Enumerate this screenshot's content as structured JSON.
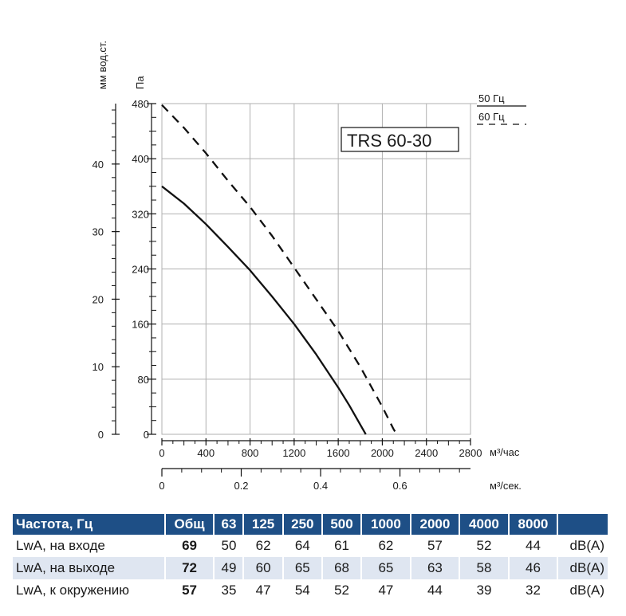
{
  "chart_data": {
    "type": "line",
    "model_label": "TRS 60-30",
    "y_left_label": "мм вод.ст.",
    "y_left_ticks": [
      "0",
      "10",
      "20",
      "30",
      "40"
    ],
    "y_right_label": "Па",
    "y_ticks": [
      "0",
      "80",
      "160",
      "240",
      "320",
      "400",
      "480"
    ],
    "ylim": [
      0,
      480
    ],
    "x_unit_label": "м³/час",
    "x_ticks": [
      "0",
      "400",
      "800",
      "1200",
      "1600",
      "2000",
      "2400",
      "2800"
    ],
    "xlim": [
      0,
      2800
    ],
    "x2_unit_label": "м³/сек.",
    "x2_ticks": [
      "0",
      "0.2",
      "0.4",
      "0.6"
    ],
    "legend": [
      {
        "label": "50 Гц",
        "style": "solid"
      },
      {
        "label": "60 Гц",
        "style": "dashed"
      }
    ],
    "series": [
      {
        "name": "50 Гц",
        "style": "solid",
        "x": [
          0,
          200,
          400,
          600,
          800,
          1000,
          1200,
          1400,
          1600,
          1700,
          1800,
          1850
        ],
        "y": [
          360,
          335,
          305,
          272,
          238,
          200,
          160,
          116,
          68,
          42,
          14,
          0
        ]
      },
      {
        "name": "60 Гц",
        "style": "dashed",
        "x": [
          0,
          200,
          400,
          600,
          800,
          1000,
          1200,
          1400,
          1600,
          1800,
          2000,
          2100,
          2130
        ],
        "y": [
          478,
          445,
          408,
          368,
          330,
          288,
          242,
          196,
          150,
          98,
          40,
          8,
          0
        ]
      }
    ],
    "grid": true
  },
  "sound_table": {
    "header": [
      "Частота, Гц",
      "Общ",
      "63",
      "125",
      "250",
      "500",
      "1000",
      "2000",
      "4000",
      "8000"
    ],
    "rows": [
      {
        "label": "LwA, на входе",
        "total": "69",
        "values": [
          "50",
          "62",
          "64",
          "61",
          "62",
          "57",
          "52",
          "44"
        ],
        "unit": "dB(A)"
      },
      {
        "label": "LwA, на выходе",
        "total": "72",
        "values": [
          "49",
          "60",
          "65",
          "68",
          "65",
          "63",
          "58",
          "46"
        ],
        "unit": "dB(A)"
      },
      {
        "label": "LwA, к окружению",
        "total": "57",
        "values": [
          "35",
          "47",
          "54",
          "52",
          "47",
          "44",
          "39",
          "32"
        ],
        "unit": "dB(A)"
      }
    ]
  },
  "colors": {
    "header_bg": "#1e4f86",
    "row_shade": "#dfe6f1",
    "grid": "#b0b0b0",
    "curve": "#111111"
  }
}
